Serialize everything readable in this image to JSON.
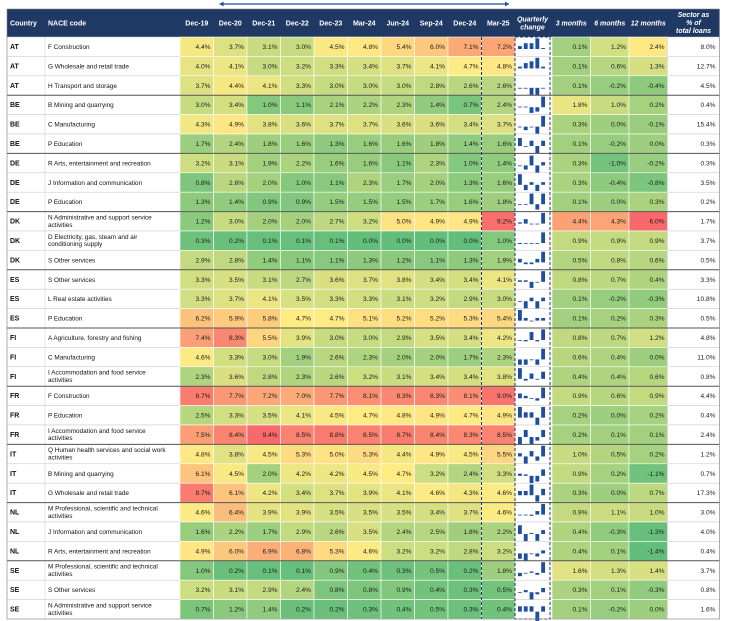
{
  "chart_data": {
    "type": "table",
    "columns": {
      "country": "Country",
      "nace": "NACE code",
      "quarters": [
        "Dec-19",
        "Dec-20",
        "Dec-21",
        "Dec-22",
        "Dec-23",
        "Mar-24",
        "Jun-24",
        "Sep-24",
        "Dec-24",
        "Mar-25"
      ],
      "quarterly_change": "Quarterly change",
      "changes": [
        "3 months",
        "6 months",
        "12 months"
      ],
      "share": "Sector as % of total loans"
    },
    "rows": [
      {
        "country": "AT",
        "nace": "F Construction",
        "values": [
          "4.4%",
          "3.7%",
          "3.1%",
          "3.0%",
          "4.5%",
          "4.8%",
          "5.4%",
          "6.0%",
          "7.1%",
          "7.2%"
        ],
        "changes": [
          "0.1%",
          "1.2%",
          "2.4%"
        ],
        "share": "8.0%"
      },
      {
        "country": "AT",
        "nace": "G Wholesale and retail trade",
        "values": [
          "4.0%",
          "4.1%",
          "3.0%",
          "3.2%",
          "3.3%",
          "3.4%",
          "3.7%",
          "4.1%",
          "4.7%",
          "4.8%"
        ],
        "changes": [
          "0.1%",
          "0.6%",
          "1.3%"
        ],
        "share": "12.7%"
      },
      {
        "country": "AT",
        "nace": "H Transport and storage",
        "values": [
          "3.7%",
          "4.4%",
          "4.1%",
          "3.3%",
          "3.0%",
          "3.0%",
          "3.0%",
          "2.8%",
          "2.6%",
          "2.6%"
        ],
        "changes": [
          "0.1%",
          "-0.2%",
          "-0.4%"
        ],
        "share": "4.5%"
      },
      {
        "country": "BE",
        "nace": "B Mining and quarrying",
        "values": [
          "3.0%",
          "3.4%",
          "1.0%",
          "1.1%",
          "2.1%",
          "2.2%",
          "2.3%",
          "1.4%",
          "0.7%",
          "2.4%"
        ],
        "changes": [
          "1.8%",
          "1.0%",
          "0.2%"
        ],
        "share": "0.4%"
      },
      {
        "country": "BE",
        "nace": "C Manufacturing",
        "values": [
          "4.3%",
          "4.9%",
          "3.8%",
          "3.6%",
          "3.7%",
          "3.7%",
          "3.6%",
          "3.6%",
          "3.4%",
          "3.7%"
        ],
        "changes": [
          "0.3%",
          "0.0%",
          "-0.1%"
        ],
        "share": "15.4%"
      },
      {
        "country": "BE",
        "nace": "P Education",
        "values": [
          "1.7%",
          "2.4%",
          "1.8%",
          "1.6%",
          "1.3%",
          "1.6%",
          "1.6%",
          "1.8%",
          "1.4%",
          "1.6%"
        ],
        "changes": [
          "0.1%",
          "-0.2%",
          "0.0%"
        ],
        "share": "0.3%"
      },
      {
        "country": "DE",
        "nace": "R Arts, entertainment and recreation",
        "values": [
          "3.2%",
          "3.1%",
          "1.9%",
          "2.2%",
          "1.6%",
          "1.6%",
          "1.1%",
          "2.3%",
          "1.0%",
          "1.4%"
        ],
        "changes": [
          "0.3%",
          "-1.0%",
          "-0.2%"
        ],
        "share": "0.3%"
      },
      {
        "country": "DE",
        "nace": "J Information and communication",
        "values": [
          "0.8%",
          "2.6%",
          "2.0%",
          "1.0%",
          "1.1%",
          "2.3%",
          "1.7%",
          "2.0%",
          "1.3%",
          "1.6%"
        ],
        "changes": [
          "0.3%",
          "-0.4%",
          "-0.8%"
        ],
        "share": "3.5%"
      },
      {
        "country": "DE",
        "nace": "P Education",
        "values": [
          "1.3%",
          "1.4%",
          "0.9%",
          "0.9%",
          "1.5%",
          "1.5%",
          "1.5%",
          "1.7%",
          "1.6%",
          "1.8%"
        ],
        "changes": [
          "0.1%",
          "0.0%",
          "0.3%"
        ],
        "share": "0.2%"
      },
      {
        "country": "DK",
        "nace": "N Administrative and support service activities",
        "values": [
          "1.2%",
          "3.0%",
          "2.0%",
          "2.0%",
          "2.7%",
          "3.2%",
          "5.0%",
          "4.9%",
          "4.9%",
          "9.2%"
        ],
        "changes": [
          "4.4%",
          "4.3%",
          "6.0%"
        ],
        "share": "1.7%"
      },
      {
        "country": "DK",
        "nace": "D Electricity, gas, steam and air conditioning supply",
        "values": [
          "0.3%",
          "0.2%",
          "0.1%",
          "0.1%",
          "0.1%",
          "0.0%",
          "0.0%",
          "0.0%",
          "0.0%",
          "1.0%"
        ],
        "changes": [
          "0.9%",
          "0.9%",
          "0.9%"
        ],
        "share": "3.7%"
      },
      {
        "country": "DK",
        "nace": "S Other services",
        "values": [
          "2.9%",
          "2.8%",
          "1.4%",
          "1.1%",
          "1.1%",
          "1.3%",
          "1.2%",
          "1.1%",
          "1.3%",
          "1.9%"
        ],
        "changes": [
          "0.5%",
          "0.8%",
          "0.6%"
        ],
        "share": "0.5%"
      },
      {
        "country": "ES",
        "nace": "S Other services",
        "values": [
          "3.3%",
          "3.5%",
          "3.1%",
          "2.7%",
          "3.6%",
          "3.7%",
          "3.8%",
          "3.4%",
          "3.4%",
          "4.1%"
        ],
        "changes": [
          "0.8%",
          "0.7%",
          "0.4%"
        ],
        "share": "3.3%"
      },
      {
        "country": "ES",
        "nace": "L Real estate activities",
        "values": [
          "3.3%",
          "3.7%",
          "4.1%",
          "3.5%",
          "3.3%",
          "3.3%",
          "3.1%",
          "3.2%",
          "2.9%",
          "3.0%"
        ],
        "changes": [
          "0.1%",
          "-0.2%",
          "-0.3%"
        ],
        "share": "10.8%"
      },
      {
        "country": "ES",
        "nace": "P Education",
        "values": [
          "6.2%",
          "5.9%",
          "5.8%",
          "4.7%",
          "4.7%",
          "5.1%",
          "5.2%",
          "5.2%",
          "5.3%",
          "5.4%"
        ],
        "changes": [
          "0.1%",
          "0.2%",
          "0.3%"
        ],
        "share": "0.5%"
      },
      {
        "country": "FI",
        "nace": "A Agriculture, forestry and fishing",
        "values": [
          "7.4%",
          "8.3%",
          "5.5%",
          "3.9%",
          "3.0%",
          "3.0%",
          "2.9%",
          "3.5%",
          "3.4%",
          "4.2%"
        ],
        "changes": [
          "0.8%",
          "0.7%",
          "1.2%"
        ],
        "share": "4.8%"
      },
      {
        "country": "FI",
        "nace": "C Manufacturing",
        "values": [
          "4.6%",
          "3.3%",
          "3.0%",
          "1.9%",
          "2.6%",
          "2.3%",
          "2.0%",
          "2.0%",
          "1.7%",
          "2.3%"
        ],
        "changes": [
          "0.6%",
          "0.4%",
          "0.0%"
        ],
        "share": "11.0%"
      },
      {
        "country": "FI",
        "nace": "I Accommodation and food service activities",
        "values": [
          "2.3%",
          "3.6%",
          "2.8%",
          "2.3%",
          "2.6%",
          "3.2%",
          "3.1%",
          "3.4%",
          "3.4%",
          "3.8%"
        ],
        "changes": [
          "0.4%",
          "0.4%",
          "0.6%"
        ],
        "share": "0.8%"
      },
      {
        "country": "FR",
        "nace": "F Construction",
        "values": [
          "8.7%",
          "7.7%",
          "7.2%",
          "7.0%",
          "7.7%",
          "8.1%",
          "8.3%",
          "8.3%",
          "8.1%",
          "9.0%"
        ],
        "changes": [
          "0.9%",
          "0.6%",
          "0.9%"
        ],
        "share": "4.4%"
      },
      {
        "country": "FR",
        "nace": "P Education",
        "values": [
          "2.5%",
          "3.3%",
          "3.5%",
          "4.1%",
          "4.5%",
          "4.7%",
          "4.8%",
          "4.9%",
          "4.7%",
          "4.9%"
        ],
        "changes": [
          "0.2%",
          "0.0%",
          "0.2%"
        ],
        "share": "0.4%"
      },
      {
        "country": "FR",
        "nace": "I Accommodation and food service activities",
        "values": [
          "7.5%",
          "8.4%",
          "9.4%",
          "8.5%",
          "8.8%",
          "8.5%",
          "8.7%",
          "8.4%",
          "8.3%",
          "8.5%"
        ],
        "changes": [
          "0.2%",
          "0.1%",
          "0.1%"
        ],
        "share": "2.4%"
      },
      {
        "country": "IT",
        "nace": "Q Human health services and social work activities",
        "values": [
          "4.8%",
          "3.8%",
          "4.5%",
          "5.3%",
          "5.0%",
          "5.3%",
          "4.4%",
          "4.9%",
          "4.5%",
          "5.5%"
        ],
        "changes": [
          "1.0%",
          "0.5%",
          "0.2%"
        ],
        "share": "1.2%"
      },
      {
        "country": "IT",
        "nace": "B Mining and quarrying",
        "values": [
          "6.1%",
          "4.5%",
          "2.0%",
          "4.2%",
          "4.2%",
          "4.5%",
          "4.7%",
          "3.2%",
          "2.4%",
          "3.3%"
        ],
        "changes": [
          "0.9%",
          "0.2%",
          "-1.1%"
        ],
        "share": "0.7%"
      },
      {
        "country": "IT",
        "nace": "G Wholesale and retail trade",
        "values": [
          "8.7%",
          "6.1%",
          "4.2%",
          "3.4%",
          "3.7%",
          "3.9%",
          "4.1%",
          "4.6%",
          "4.3%",
          "4.6%"
        ],
        "changes": [
          "0.3%",
          "0.0%",
          "0.7%"
        ],
        "share": "17.3%"
      },
      {
        "country": "NL",
        "nace": "M Professional, scientific and technical activities",
        "values": [
          "4.6%",
          "6.4%",
          "3.9%",
          "3.9%",
          "3.5%",
          "3.5%",
          "3.5%",
          "3.4%",
          "3.7%",
          "4.6%"
        ],
        "changes": [
          "0.9%",
          "1.1%",
          "1.0%"
        ],
        "share": "3.0%"
      },
      {
        "country": "NL",
        "nace": "J Information and communication",
        "values": [
          "1.6%",
          "2.2%",
          "1.7%",
          "2.9%",
          "2.6%",
          "3.5%",
          "2.4%",
          "2.5%",
          "1.8%",
          "2.2%"
        ],
        "changes": [
          "0.4%",
          "-0.3%",
          "-1.3%"
        ],
        "share": "4.0%"
      },
      {
        "country": "NL",
        "nace": "R Arts, entertainment and recreation",
        "values": [
          "4.9%",
          "6.0%",
          "6.9%",
          "6.8%",
          "5.3%",
          "4.6%",
          "3.2%",
          "3.2%",
          "2.8%",
          "3.2%"
        ],
        "changes": [
          "0.4%",
          "0.1%",
          "-1.4%"
        ],
        "share": "0.4%"
      },
      {
        "country": "SE",
        "nace": "M Professional, scientific and technical activities",
        "values": [
          "1.0%",
          "0.2%",
          "0.1%",
          "0.1%",
          "0.9%",
          "0.4%",
          "0.3%",
          "0.5%",
          "0.2%",
          "1.8%"
        ],
        "changes": [
          "1.6%",
          "1.3%",
          "1.4%"
        ],
        "share": "3.7%"
      },
      {
        "country": "SE",
        "nace": "S Other services",
        "values": [
          "3.2%",
          "3.1%",
          "2.9%",
          "2.4%",
          "0.8%",
          "0.8%",
          "0.9%",
          "0.4%",
          "0.3%",
          "0.5%"
        ],
        "changes": [
          "0.3%",
          "0.1%",
          "-0.3%"
        ],
        "share": "0.8%"
      },
      {
        "country": "SE",
        "nace": "N Administrative and support service activities",
        "values": [
          "0.7%",
          "1.2%",
          "1.4%",
          "0.2%",
          "0.2%",
          "0.3%",
          "0.4%",
          "0.5%",
          "0.3%",
          "0.4%"
        ],
        "changes": [
          "0.1%",
          "-0.2%",
          "0.0%"
        ],
        "share": "1.6%"
      }
    ],
    "colors": {
      "header_bg": "#1f3864",
      "low": "#63be7b",
      "mid": "#ffeb84",
      "high": "#f8696b",
      "bar": "#1f4e9c",
      "grid": "#c8c8c8",
      "dashed": "#1f3864"
    }
  }
}
